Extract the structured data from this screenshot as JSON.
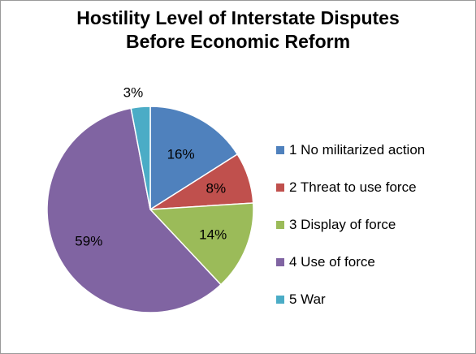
{
  "chart_data": {
    "type": "pie",
    "title_lines": [
      "Hostility Level of Interstate Disputes",
      "Before Economic Reform"
    ],
    "legend_position": "right",
    "slices": [
      {
        "label": "1 No militarized action",
        "value": 16,
        "value_label": "16%",
        "color": "#4f81bd"
      },
      {
        "label": "2 Threat to use force",
        "value": 8,
        "value_label": "8%",
        "color": "#c0504d"
      },
      {
        "label": "3 Display of force",
        "value": 14,
        "value_label": "14%",
        "color": "#9bbb59"
      },
      {
        "label": "4 Use of force",
        "value": 59,
        "value_label": "59%",
        "color": "#8064a2"
      },
      {
        "label": "5 War",
        "value": 3,
        "value_label": "3%",
        "color": "#4bacc6"
      }
    ]
  }
}
